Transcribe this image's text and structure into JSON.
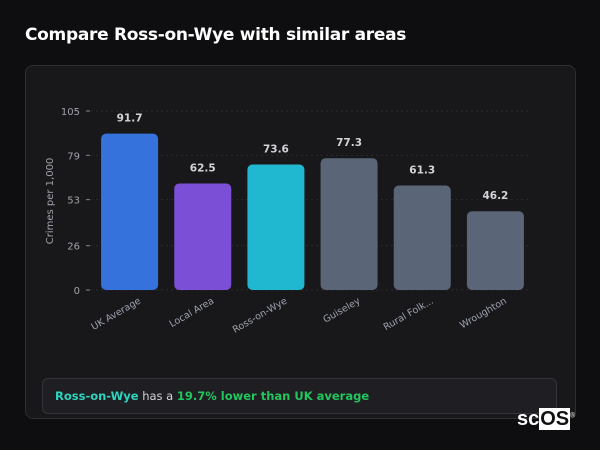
{
  "header": {
    "title": "Compare Ross-on-Wye with similar areas"
  },
  "chart_data": {
    "type": "bar",
    "ylabel": "Crimes per 1,000",
    "xlabel": "",
    "ylim": [
      0,
      105
    ],
    "yticks": [
      0,
      26,
      53,
      79,
      105
    ],
    "grid": true,
    "categories": [
      "UK Average",
      "Local Area",
      "Ross-on-Wye",
      "Guiseley",
      "Rural Folk...",
      "Wroughton"
    ],
    "values": [
      91.7,
      62.5,
      73.6,
      77.3,
      61.3,
      46.2
    ],
    "data_labels": [
      "91.7",
      "62.5",
      "73.6",
      "77.3",
      "61.3",
      "46.2"
    ],
    "colors": [
      "#3572db",
      "#7b4fd6",
      "#1fb8d0",
      "#5b6578",
      "#5b6578",
      "#5b6578"
    ]
  },
  "callout": {
    "place": "Ross-on-Wye",
    "middle": " has a ",
    "stat": "19.7% lower than UK average"
  },
  "watermark": {
    "text": "scOS"
  }
}
